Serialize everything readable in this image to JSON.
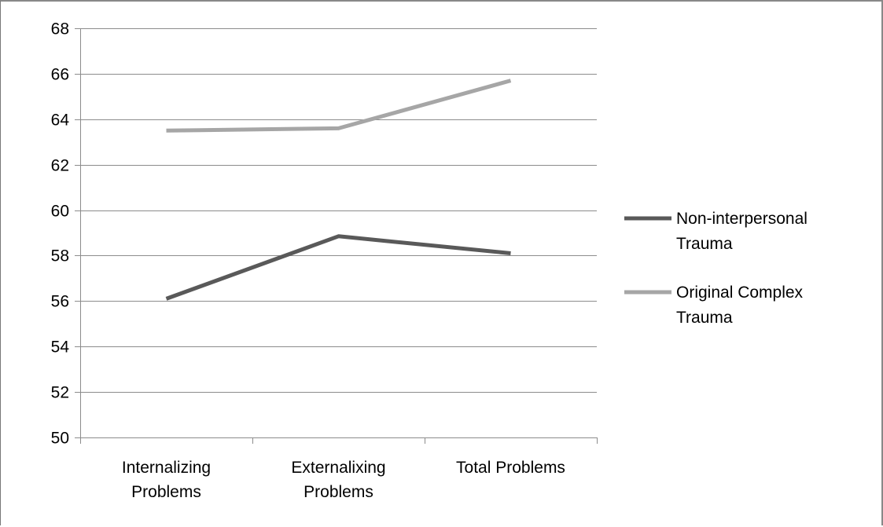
{
  "chart_data": {
    "type": "line",
    "categories": [
      [
        "Internalizing",
        "Problems"
      ],
      [
        "Externalixing",
        "Problems"
      ],
      [
        "Total Problems"
      ]
    ],
    "series": [
      {
        "name": [
          "Non-interpersonal",
          "Trauma"
        ],
        "values": [
          56.1,
          58.85,
          58.1
        ],
        "color": "#595959"
      },
      {
        "name": [
          "Original Complex",
          "Trauma"
        ],
        "values": [
          63.5,
          63.6,
          65.7
        ],
        "color": "#a6a6a6"
      }
    ],
    "ylim": [
      50,
      68
    ],
    "yticks": [
      50,
      52,
      54,
      56,
      58,
      60,
      62,
      64,
      66,
      68
    ],
    "grid": true,
    "legend_position": "right",
    "title": "",
    "xlabel": "",
    "ylabel": ""
  }
}
